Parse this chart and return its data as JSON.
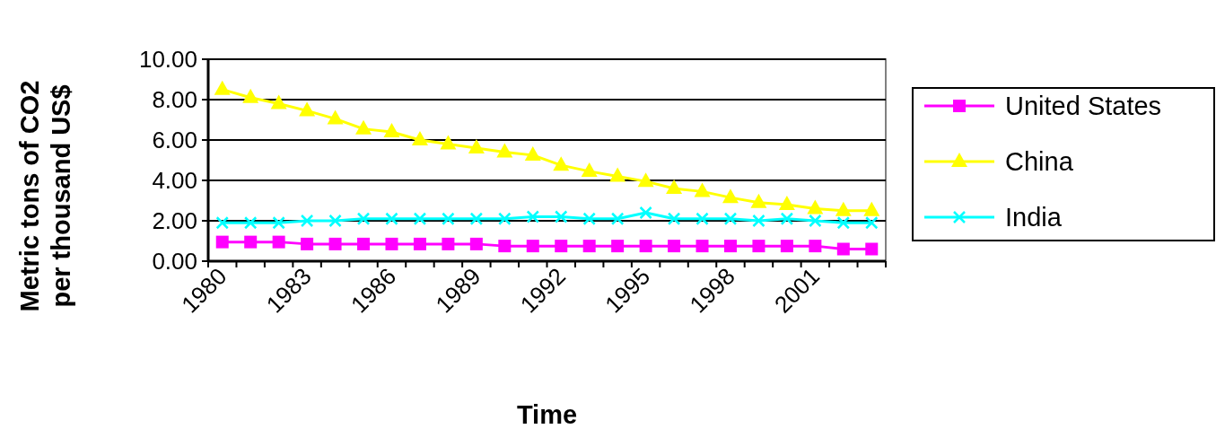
{
  "chart_data": {
    "type": "line",
    "xlabel": "Time",
    "ylabel": "Metric tons of CO2 per thousand US$",
    "categories": [
      "1980",
      null,
      null,
      "1983",
      null,
      null,
      "1986",
      null,
      null,
      "1989",
      null,
      null,
      "1992",
      null,
      null,
      "1995",
      null,
      null,
      "1998",
      null,
      null,
      "2001",
      null,
      null
    ],
    "series": [
      {
        "name": "United States",
        "color": "#ff00ff",
        "marker": "square",
        "values": [
          0.95,
          0.95,
          0.95,
          0.85,
          0.85,
          0.85,
          0.85,
          0.85,
          0.85,
          0.85,
          0.75,
          0.75,
          0.75,
          0.75,
          0.75,
          0.75,
          0.75,
          0.75,
          0.75,
          0.75,
          0.75,
          0.75,
          0.6,
          0.6
        ]
      },
      {
        "name": "China",
        "color": "#ffff00",
        "marker": "triangle",
        "values": [
          8.5,
          8.1,
          7.8,
          7.45,
          7.05,
          6.55,
          6.4,
          6.0,
          5.8,
          5.6,
          5.4,
          5.25,
          4.75,
          4.45,
          4.2,
          3.95,
          3.6,
          3.45,
          3.15,
          2.9,
          2.8,
          2.6,
          2.5,
          2.5
        ]
      },
      {
        "name": "India",
        "color": "#00ffff",
        "marker": "cross",
        "values": [
          1.9,
          1.9,
          1.9,
          2.0,
          2.0,
          2.1,
          2.1,
          2.1,
          2.1,
          2.1,
          2.1,
          2.2,
          2.2,
          2.1,
          2.1,
          2.4,
          2.1,
          2.1,
          2.1,
          2.0,
          2.1,
          2.0,
          1.9,
          1.9
        ]
      }
    ],
    "ylim": [
      0,
      10
    ],
    "yticks": [
      {
        "value": 0,
        "label": "0.00"
      },
      {
        "value": 2,
        "label": "2.00"
      },
      {
        "value": 4,
        "label": "4.00"
      },
      {
        "value": 6,
        "label": "6.00"
      },
      {
        "value": 8,
        "label": "8.00"
      },
      {
        "value": 10,
        "label": "10.00"
      }
    ],
    "grid": "y",
    "legend": "right",
    "line_style": "solid"
  }
}
